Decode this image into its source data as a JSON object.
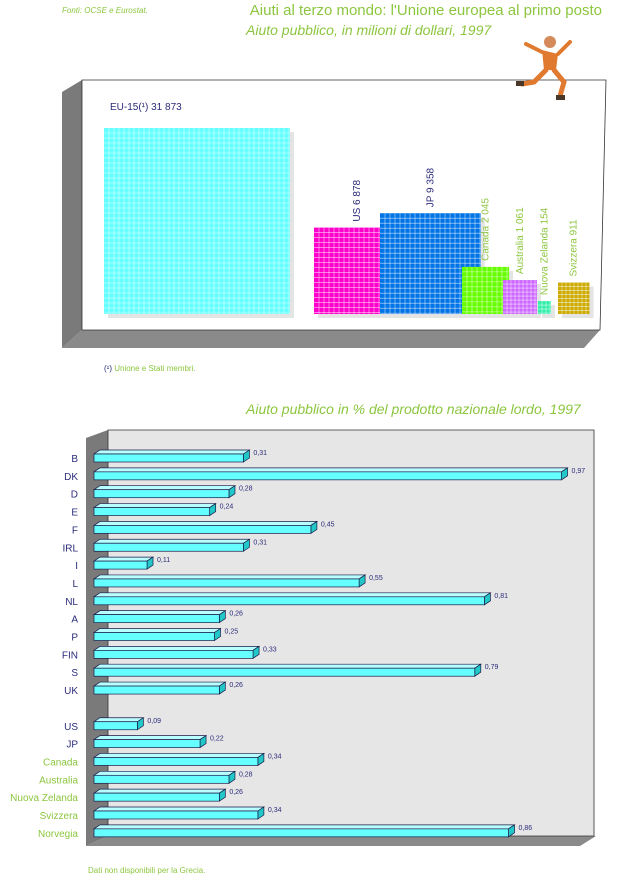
{
  "header": {
    "source": "Fonti: OCSE e Eurostat.",
    "title": "Aiuti al terzo mondo: l'Unione europea al primo posto",
    "subtitle": "Aiuto pubblico, in milioni di dollari, 1997"
  },
  "footnote": {
    "mark": "(¹)",
    "text": " Unione e Stati membri."
  },
  "bottom_note": "Dati non disponibili per la Grecia.",
  "mascot": {
    "icon": "running-figure-icon"
  },
  "colors": {
    "green_text": "#8cc63f",
    "navy_text": "#2b2b7a",
    "cyan_bar": "#66ffff",
    "panel_gray": "#e6e6e6"
  },
  "chart_data": [
    {
      "type": "bar",
      "title": "Aiuto pubblico, in milioni di dollari, 1997",
      "unit": "milioni di dollari",
      "categories": [
        "EU-15(¹)",
        "US",
        "JP",
        "Canada",
        "Australia",
        "Nuova Zelanda",
        "Svizzera"
      ],
      "values": [
        31873,
        6878,
        9358,
        2045,
        1061,
        154,
        911
      ],
      "value_labels": [
        "31 873",
        "6 878",
        "9 358",
        "2 045",
        "1 061",
        "154",
        "911"
      ],
      "labels": [
        "EU-15(¹) 31 873",
        "US 6 878",
        "JP 9 358",
        "Canada 2 045",
        "Australia 1 061",
        "Nuova Zelanda 154",
        "Svizzera 911"
      ],
      "colors": [
        "#66ffff",
        "#ff00cc",
        "#0073e6",
        "#66ff00",
        "#cc66ff",
        "#33eeaa",
        "#ccaa00"
      ],
      "label_colors": [
        "#2b2b7a",
        "#2b2b7a",
        "#2b2b7a",
        "#8cc63f",
        "#8cc63f",
        "#8cc63f",
        "#8cc63f"
      ]
    },
    {
      "type": "bar",
      "orientation": "horizontal",
      "title": "Aiuto pubblico in % del prodotto nazionale lordo, 1997",
      "categories": [
        "B",
        "DK",
        "D",
        "E",
        "F",
        "IRL",
        "I",
        "L",
        "NL",
        "A",
        "P",
        "FIN",
        "S",
        "UK",
        "US",
        "JP",
        "Canada",
        "Australia",
        "Nuova Zelanda",
        "Svizzera",
        "Norvegia"
      ],
      "values": [
        0.31,
        0.97,
        0.28,
        0.24,
        0.45,
        0.31,
        0.11,
        0.55,
        0.81,
        0.26,
        0.25,
        0.33,
        0.79,
        0.26,
        0.09,
        0.22,
        0.34,
        0.28,
        0.26,
        0.34,
        0.86
      ],
      "value_labels": [
        "0,31",
        "0,97",
        "0,28",
        "0,24",
        "0,45",
        "0,31",
        "0,11",
        "0,55",
        "0,81",
        "0,26",
        "0,25",
        "0,33",
        "0,79",
        "0,26",
        "0,09",
        "0,22",
        "0,34",
        "0,28",
        "0,26",
        "0,34",
        "0,86"
      ],
      "label_colors": [
        "#2b2b7a",
        "#2b2b7a",
        "#2b2b7a",
        "#2b2b7a",
        "#2b2b7a",
        "#2b2b7a",
        "#2b2b7a",
        "#2b2b7a",
        "#2b2b7a",
        "#2b2b7a",
        "#2b2b7a",
        "#2b2b7a",
        "#2b2b7a",
        "#2b2b7a",
        "#2b2b7a",
        "#2b2b7a",
        "#8cc63f",
        "#8cc63f",
        "#8cc63f",
        "#8cc63f",
        "#8cc63f"
      ],
      "bar_color": "#66ffff"
    }
  ]
}
